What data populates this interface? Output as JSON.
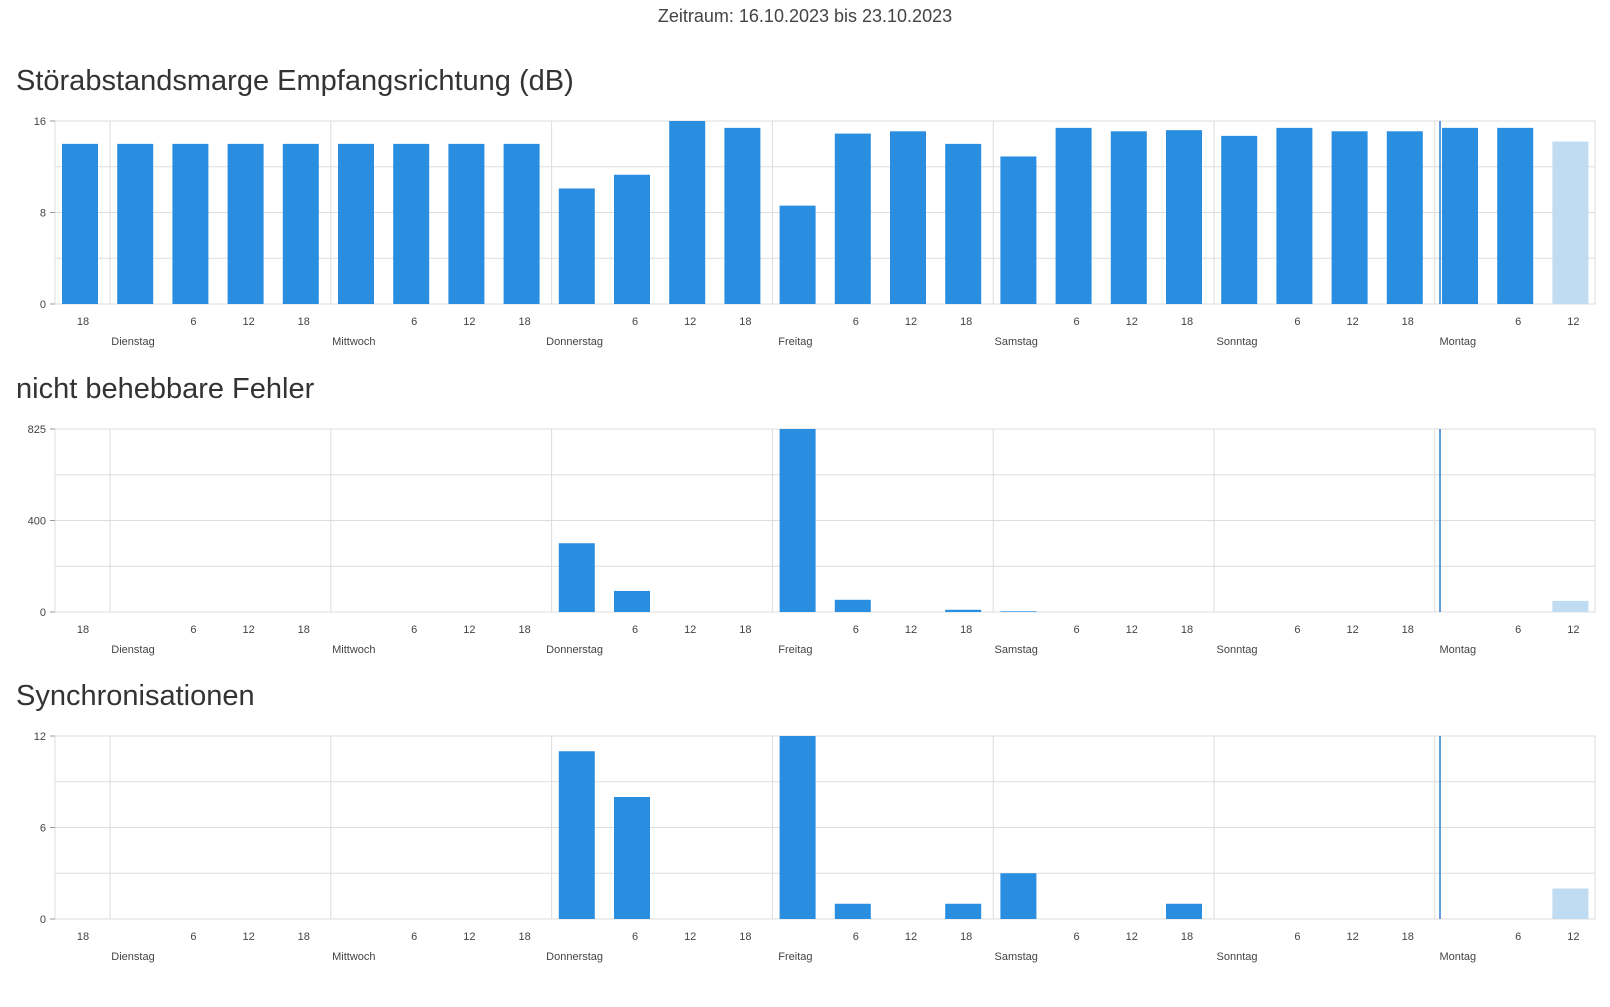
{
  "period_label": "Zeitraum: 16.10.2023 bis 23.10.2023",
  "colors": {
    "bar": "#2a8ee0",
    "bar_current": "#bfdcf3",
    "grid": "#dddddd",
    "now_line": "#2a7fd0"
  },
  "chart_data": [
    {
      "type": "bar",
      "title": "Störabstandsmarge Empfangsrichtung (dB)",
      "ylim": [
        0,
        16
      ],
      "yticks": [
        "16",
        "8",
        "0"
      ],
      "grid": true,
      "x_ticks": [
        "18",
        "6",
        "12",
        "18",
        "6",
        "12",
        "18",
        "6",
        "12",
        "18",
        "6",
        "12",
        "18",
        "6",
        "12",
        "18",
        "6",
        "12",
        "18",
        "6",
        "12"
      ],
      "day_labels": [
        "Dienstag",
        "Mittwoch",
        "Donnerstag",
        "Freitag",
        "Samstag",
        "Sonntag",
        "Montag"
      ],
      "values": [
        14,
        14,
        14,
        14,
        14,
        14,
        14,
        14,
        14,
        10.1,
        11.3,
        16,
        15.4,
        8.6,
        14.9,
        15.1,
        14,
        12.9,
        15.4,
        15.1,
        15.2,
        14.7,
        15.4,
        15.1,
        15.1,
        15.4,
        15.4,
        14.2
      ],
      "last_value_partial": true
    },
    {
      "type": "bar",
      "title": "nicht behebbare Fehler",
      "ylim": [
        0,
        825
      ],
      "yticks": [
        "825",
        "400",
        "0"
      ],
      "grid": true,
      "x_ticks": [
        "18",
        "6",
        "12",
        "18",
        "6",
        "12",
        "18",
        "6",
        "12",
        "18",
        "6",
        "12",
        "18",
        "6",
        "12",
        "18",
        "6",
        "12",
        "18",
        "6",
        "12"
      ],
      "day_labels": [
        "Dienstag",
        "Mittwoch",
        "Donnerstag",
        "Freitag",
        "Samstag",
        "Sonntag",
        "Montag"
      ],
      "values": [
        0,
        0,
        0,
        0,
        0,
        0,
        0,
        0,
        0,
        310,
        95,
        0,
        0,
        825,
        55,
        0,
        10,
        3,
        0,
        0,
        0,
        0,
        0,
        0,
        0,
        0,
        0,
        50
      ],
      "last_value_partial": true
    },
    {
      "type": "bar",
      "title": "Synchronisationen",
      "ylim": [
        0,
        12
      ],
      "yticks": [
        "12",
        "6",
        "0"
      ],
      "grid": true,
      "x_ticks": [
        "18",
        "6",
        "12",
        "18",
        "6",
        "12",
        "18",
        "6",
        "12",
        "18",
        "6",
        "12",
        "18",
        "6",
        "12",
        "18",
        "6",
        "12",
        "18",
        "6",
        "12"
      ],
      "day_labels": [
        "Dienstag",
        "Mittwoch",
        "Donnerstag",
        "Freitag",
        "Samstag",
        "Sonntag",
        "Montag"
      ],
      "values": [
        0,
        0,
        0,
        0,
        0,
        0,
        0,
        0,
        0,
        11,
        8,
        0,
        0,
        12,
        1,
        0,
        1,
        3,
        0,
        0,
        1,
        0,
        0,
        0,
        0,
        0,
        0,
        2
      ],
      "last_value_partial": true
    }
  ]
}
